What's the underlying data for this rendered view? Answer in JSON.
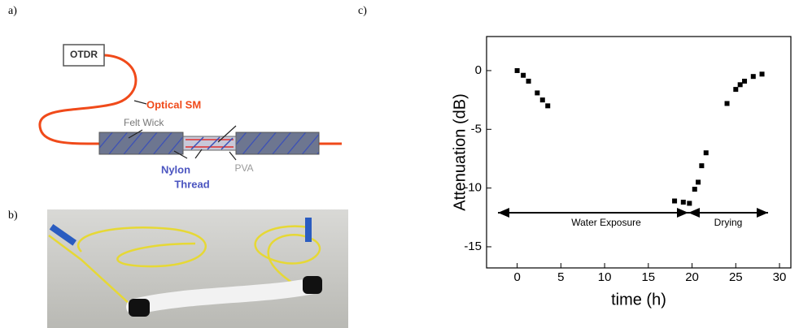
{
  "panels": {
    "a": "a)",
    "b": "b)",
    "c": "c)"
  },
  "diagram": {
    "device": "OTDR",
    "fiber": "Optical SM",
    "wick": "Felt Wick",
    "thread": [
      "Nylon",
      "Thread"
    ],
    "coating": "PVA"
  },
  "chart_data": {
    "type": "scatter",
    "xlabel": "time (h)",
    "ylabel": "Attenuation (dB)",
    "x": [
      0,
      0.7,
      1.3,
      2.3,
      2.9,
      3.5,
      18,
      19,
      19.7,
      20.3,
      20.7,
      21.1,
      21.6,
      24,
      25,
      25.5,
      26,
      27,
      28
    ],
    "values": [
      0,
      -0.4,
      -0.9,
      -1.9,
      -2.5,
      -3.0,
      -11.1,
      -11.2,
      -11.3,
      -10.1,
      -9.5,
      -8.1,
      -7.0,
      -2.8,
      -1.6,
      -1.2,
      -0.9,
      -0.5,
      -0.3
    ],
    "color": "#000000",
    "xlim": [
      -3.5,
      31.3
    ],
    "ylim": [
      -16.8,
      2.9
    ],
    "xticks": [
      0,
      5,
      10,
      15,
      20,
      25,
      30
    ],
    "yticks": [
      0,
      -5,
      -10,
      -15
    ],
    "annotations": [
      "Water Exposure",
      "Drying"
    ]
  }
}
